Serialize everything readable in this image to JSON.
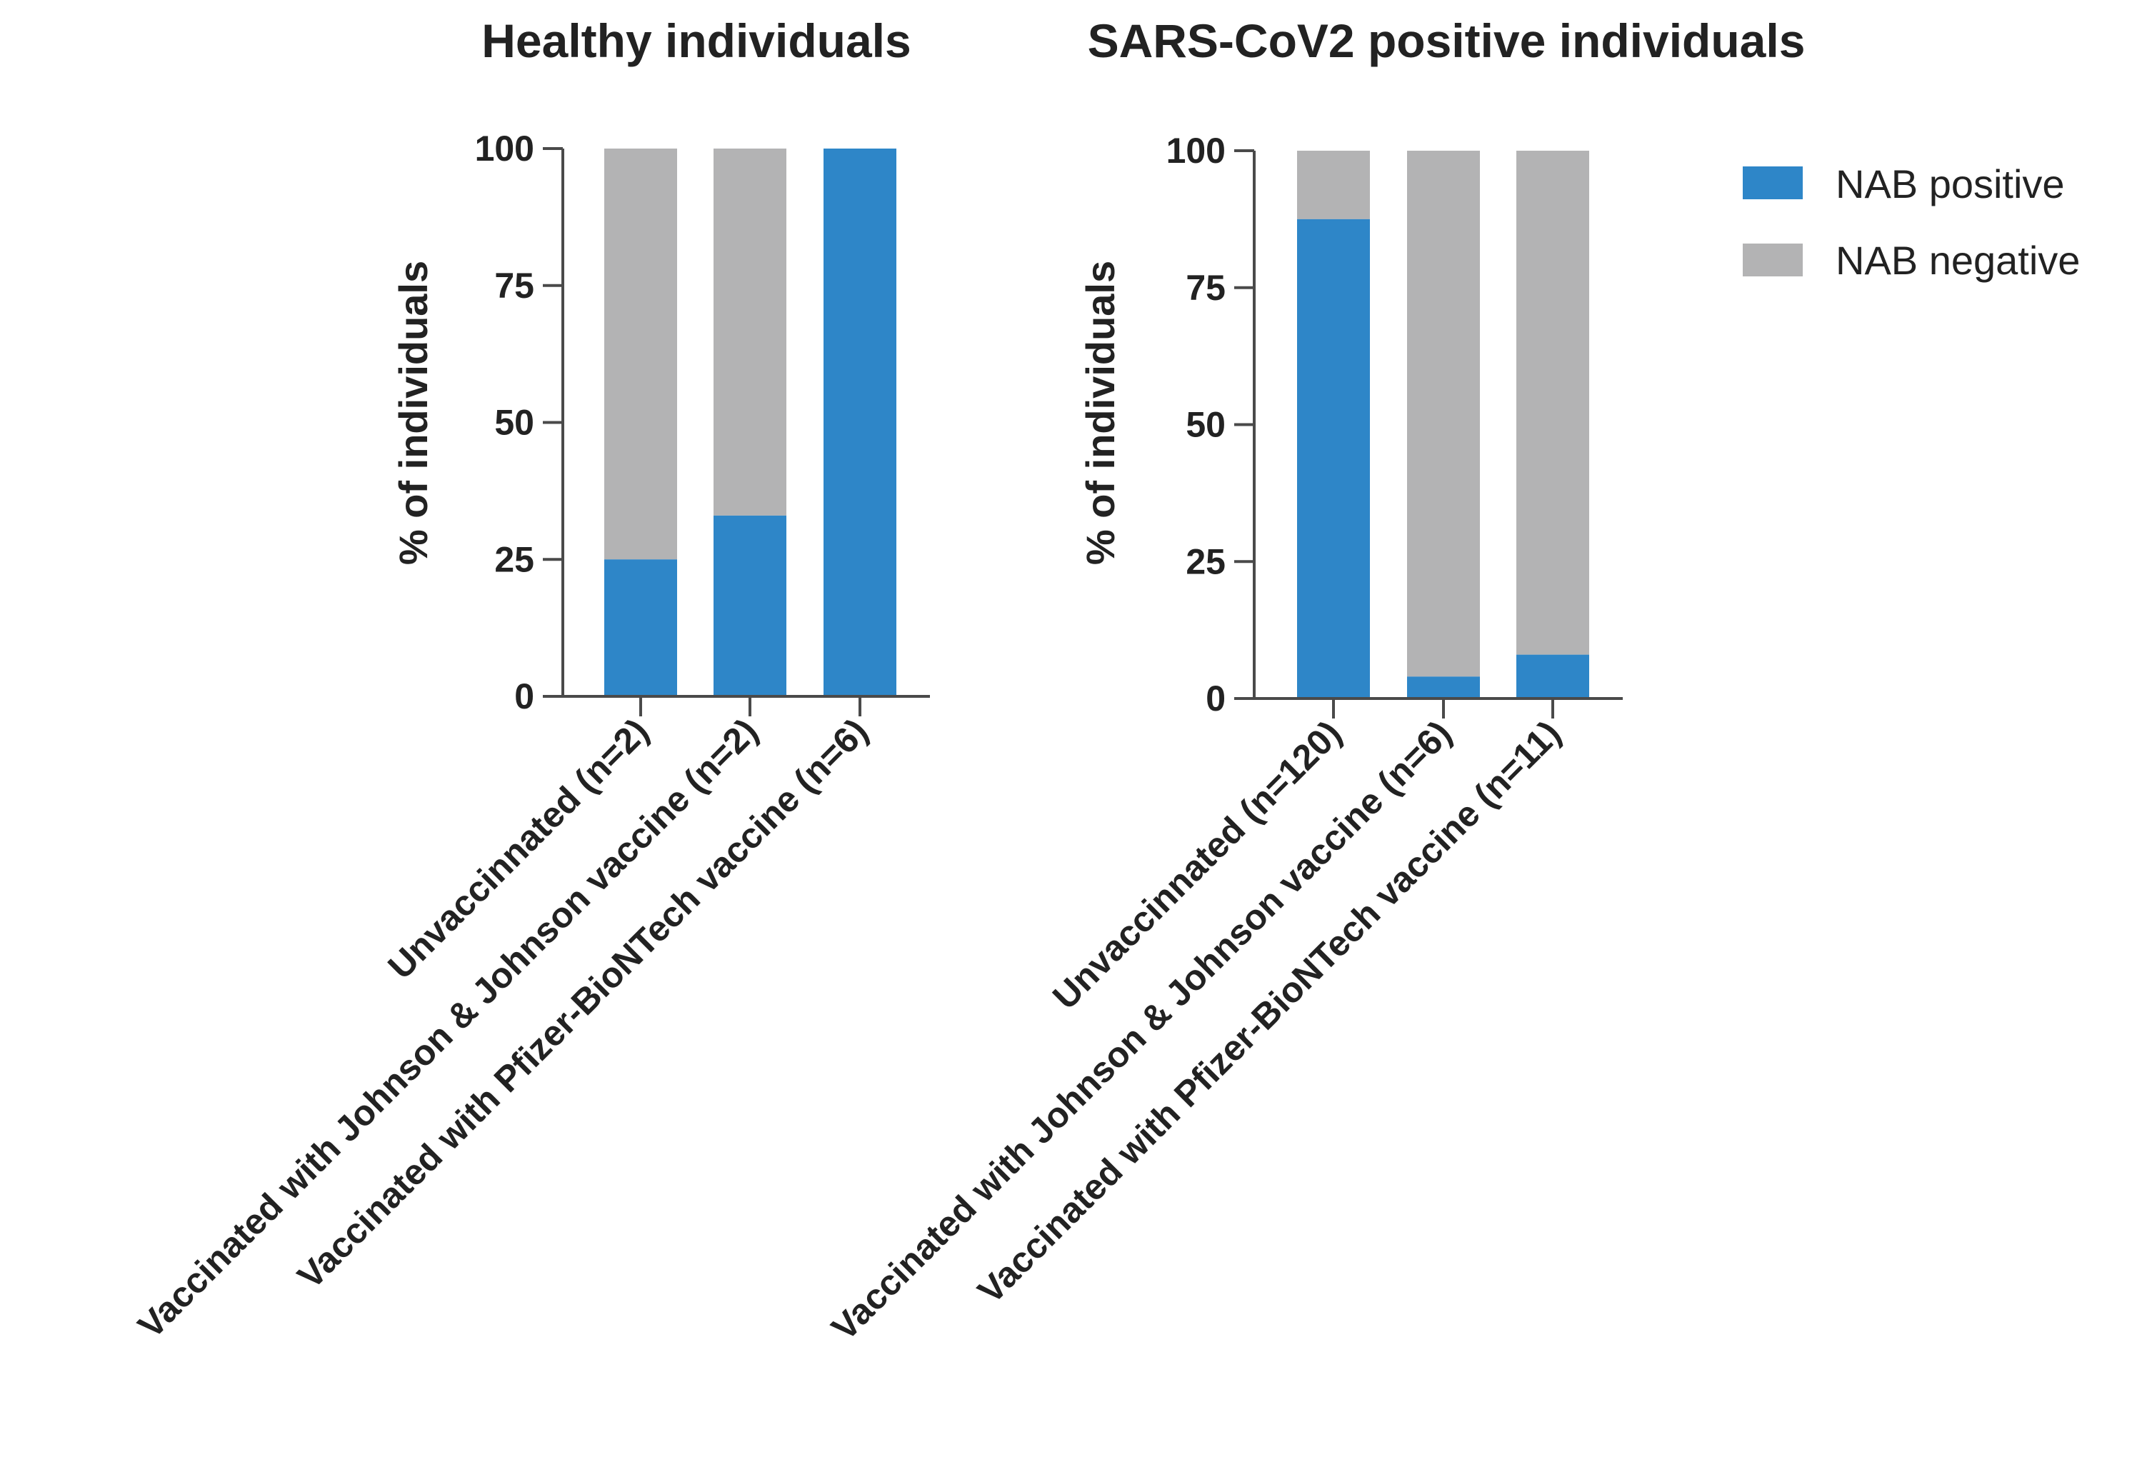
{
  "chart_data": [
    {
      "type": "bar",
      "stacked": true,
      "title": "Healthy individuals",
      "ylabel": "% of individuals",
      "ylim": [
        0,
        100
      ],
      "yticks": [
        0,
        25,
        50,
        75,
        100
      ],
      "categories": [
        "Unvaccinnated (n=2)",
        "Vaccinated with Johnson & Johnson vaccine (n=2)",
        "Vaccinated with Pfizer-BioNTech vaccine (n=6)"
      ],
      "series": [
        {
          "name": "NAB positive",
          "values": [
            25,
            33,
            100
          ]
        },
        {
          "name": "NAB negative",
          "values": [
            75,
            67,
            0
          ]
        }
      ]
    },
    {
      "type": "bar",
      "stacked": true,
      "title": "SARS-CoV2 positive individuals",
      "ylabel": "% of individuals",
      "ylim": [
        0,
        100
      ],
      "yticks": [
        0,
        25,
        50,
        75,
        100
      ],
      "categories": [
        "Unvaccinnated (n=120)",
        "Vaccinated with Johnson & Johnson vaccine (n=6)",
        "Vaccinated with Pfizer-BioNTech vaccine (n=11)"
      ],
      "series": [
        {
          "name": "NAB positive",
          "values": [
            87.5,
            4,
            8
          ]
        },
        {
          "name": "NAB negative",
          "values": [
            12.5,
            96,
            92
          ]
        }
      ]
    }
  ],
  "legend": {
    "position": "top-right",
    "items": [
      {
        "label": "NAB positive",
        "color": "#2e86c8"
      },
      {
        "label": "NAB negative",
        "color": "#b3b3b4"
      }
    ]
  },
  "colors": {
    "NAB positive": "#2e86c8",
    "NAB negative": "#b3b3b4"
  }
}
